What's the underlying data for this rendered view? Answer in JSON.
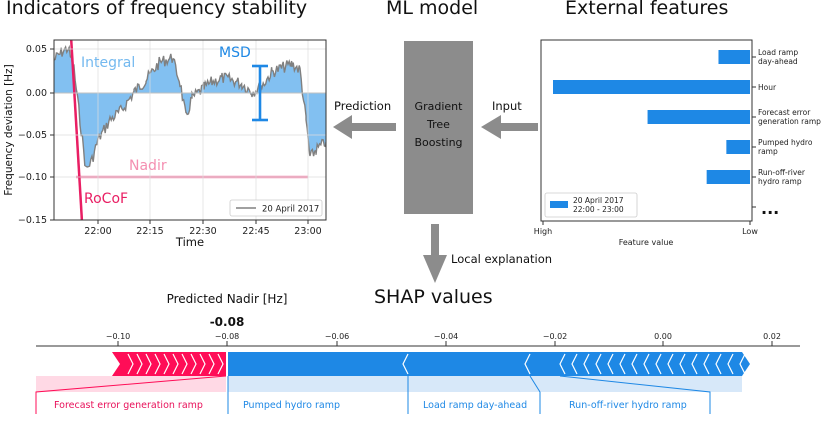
{
  "titles": {
    "indicators": "Indicators of frequency stability",
    "ml_model": "ML model",
    "external": "External features",
    "shap": "SHAP values"
  },
  "left_plot": {
    "ylabel": "Frequency deviation [Hz]",
    "xlabel": "Time",
    "yticks": [
      "0.05",
      "0.00",
      "−0.05",
      "−0.10",
      "−0.15"
    ],
    "xticks": [
      "22:00",
      "22:15",
      "22:30",
      "22:45",
      "23:00"
    ],
    "annotations": {
      "integral": "Integral",
      "msd": "MSD",
      "nadir": "Nadir",
      "rocof": "RoCoF"
    },
    "legend": "20 April 2017",
    "colors": {
      "integral": "#74b9ef",
      "msd": "#1e88e5",
      "nadir": "#f48fb1",
      "rocof": "#e91e63",
      "signal": "#808080"
    }
  },
  "model": {
    "label_lines": [
      "Gradient",
      "Tree",
      "Boosting"
    ],
    "color": "#8c8c8c"
  },
  "arrows": {
    "prediction": "Prediction",
    "input": "Input",
    "local_explanation": "Local explanation"
  },
  "right_plot": {
    "features": [
      "Load ramp day-ahead",
      "Hour",
      "Forecast error generation ramp",
      "Pumped hydro ramp",
      "Run-off-river hydro ramp"
    ],
    "feature_label_lines": [
      [
        "Load ramp",
        "day-ahead"
      ],
      [
        "Hour"
      ],
      [
        "Forecast error",
        "generation ramp"
      ],
      [
        "Pumped hydro",
        "ramp"
      ],
      [
        "Run-off-river",
        "hydro ramp"
      ]
    ],
    "values": [
      0.16,
      1.0,
      0.52,
      0.12,
      0.22
    ],
    "ellipsis": "...",
    "legend_lines": [
      "20 April 2017",
      "22:00 - 23:00"
    ],
    "xtick_high": "High",
    "xtick_low": "Low",
    "xlabel": "Feature value",
    "bar_color": "#1e88e5"
  },
  "shap": {
    "predicted_label": "Predicted Nadir [Hz]",
    "predicted_value": "-0.08",
    "axis_ticks": [
      "−0.10",
      "−0.08",
      "−0.06",
      "−0.04",
      "−0.02",
      "0.00",
      "0.02"
    ],
    "features": [
      "Forecast error generation ramp",
      "Pumped hydro ramp",
      "Load ramp day-ahead",
      "Run-off-river hydro ramp"
    ],
    "colors": {
      "positive": "#ff0d57",
      "negative": "#1e88e5"
    }
  }
}
